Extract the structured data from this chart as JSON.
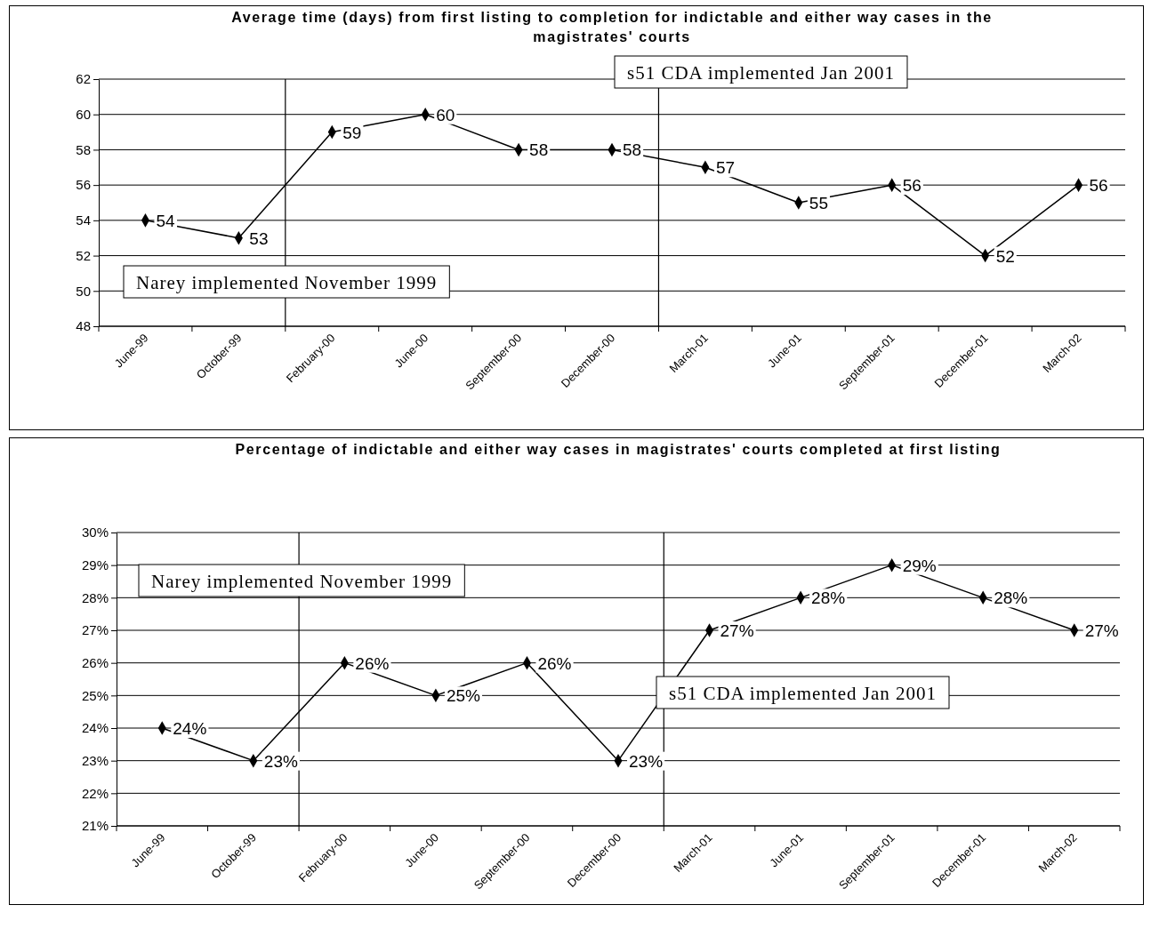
{
  "chart_data": [
    {
      "type": "line",
      "title": "Average time (days) from first listing to completion for indictable and either way cases in the magistrates' courts",
      "categories": [
        "June-99",
        "October-99",
        "February-00",
        "June-00",
        "September-00",
        "December-00",
        "March-01",
        "June-01",
        "September-01",
        "December-01",
        "March-02"
      ],
      "series": [
        {
          "color": "#000000",
          "values": [
            54,
            53,
            59,
            60,
            58,
            58,
            57,
            55,
            56,
            52,
            56
          ]
        }
      ],
      "ylim": [
        48,
        62
      ],
      "yticks": [
        48,
        50,
        52,
        54,
        56,
        58,
        60,
        62
      ],
      "grid": "y",
      "marker": "diamond",
      "data_labels": true,
      "annotations": [
        "Narey implemented November 1999",
        "s51 CDA implemented Jan 2001"
      ]
    },
    {
      "type": "line",
      "title": "Percentage of indictable and either way cases in magistrates' courts completed at first listing",
      "categories": [
        "June-99",
        "October-99",
        "February-00",
        "June-00",
        "September-00",
        "December-00",
        "March-01",
        "June-01",
        "September-01",
        "December-01",
        "March-02"
      ],
      "series": [
        {
          "color": "#000000",
          "values": [
            24,
            23,
            26,
            25,
            26,
            23,
            27,
            28,
            29,
            28,
            27
          ],
          "value_labels": [
            "24%",
            "23%",
            "26%",
            "25%",
            "26%",
            "23%",
            "27%",
            "28%",
            "29%",
            "28%",
            "27%"
          ]
        }
      ],
      "ylim": [
        21,
        30
      ],
      "yticks": [
        {
          "value": 21,
          "label": "21%"
        },
        {
          "value": 22,
          "label": "22%"
        },
        {
          "value": 23,
          "label": "23%"
        },
        {
          "value": 24,
          "label": "24%"
        },
        {
          "value": 25,
          "label": "25%"
        },
        {
          "value": 26,
          "label": "26%"
        },
        {
          "value": 27,
          "label": "27%"
        },
        {
          "value": 28,
          "label": "28%"
        },
        {
          "value": 29,
          "label": "29%"
        },
        {
          "value": 30,
          "label": "30%"
        }
      ],
      "grid": "y",
      "marker": "diamond",
      "annotations": [
        "Narey implemented November 1999",
        "s51 CDA implemented Jan 2001"
      ]
    }
  ]
}
